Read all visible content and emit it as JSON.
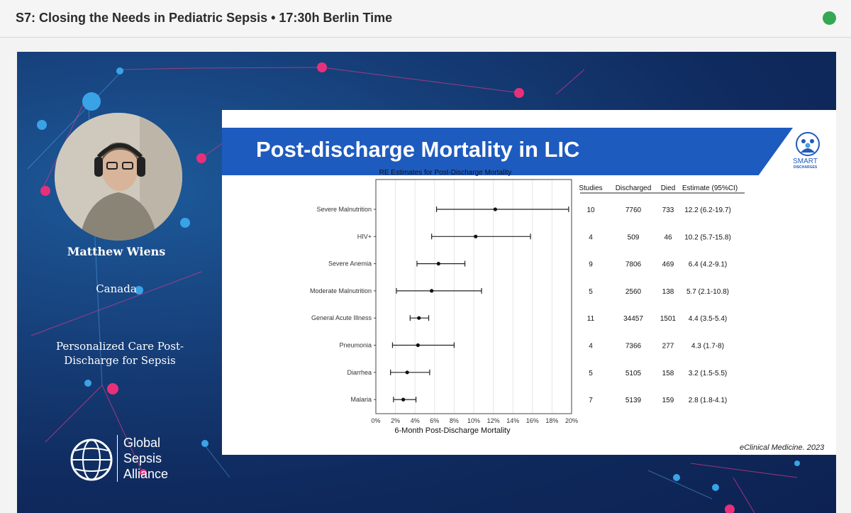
{
  "header": {
    "title": "S7: Closing the Needs in Pediatric Sepsis • 17:30h Berlin Time",
    "live_color": "#34a853"
  },
  "speaker": {
    "name": "Matthew Wiens",
    "country": "Canada",
    "talk_line1": "Personalized Care Post-",
    "talk_line2": "Discharge for Sepsis"
  },
  "organization": {
    "line1": "Global",
    "line2": "Sepsis",
    "line3": "Alliance"
  },
  "slide": {
    "title": "Post-discharge Mortality in LIC",
    "logo_text": "SMART",
    "logo_sub": "DISCHARGES",
    "citation": "eClinical Medicine. 2023",
    "table_headers": [
      "Studies",
      "Discharged",
      "Died",
      "Estimate (95%CI)"
    ],
    "rows": [
      {
        "condition": "Severe Malnutrition",
        "studies": "10",
        "discharged": "7760",
        "died": "733",
        "estimate_text": "12.2 (6.2-19.7)"
      },
      {
        "condition": "HIV+",
        "studies": "4",
        "discharged": "509",
        "died": "46",
        "estimate_text": "10.2 (5.7-15.8)"
      },
      {
        "condition": "Severe Anemia",
        "studies": "9",
        "discharged": "7806",
        "died": "469",
        "estimate_text": "6.4 (4.2-9.1)"
      },
      {
        "condition": "Moderate Malnutrition",
        "studies": "5",
        "discharged": "2560",
        "died": "138",
        "estimate_text": "5.7 (2.1-10.8)"
      },
      {
        "condition": "General Acute Illness",
        "studies": "11",
        "discharged": "34457",
        "died": "1501",
        "estimate_text": "4.4 (3.5-5.4)"
      },
      {
        "condition": "Pneumonia",
        "studies": "4",
        "discharged": "7366",
        "died": "277",
        "estimate_text": "4.3 (1.7-8)"
      },
      {
        "condition": "Diarrhea",
        "studies": "5",
        "discharged": "5105",
        "died": "158",
        "estimate_text": "3.2 (1.5-5.5)"
      },
      {
        "condition": "Malaria",
        "studies": "7",
        "discharged": "5139",
        "died": "159",
        "estimate_text": "2.8 (1.8-4.1)"
      }
    ]
  },
  "chart_data": {
    "type": "scatter",
    "title": "RE Estimates for Post-Discharge Mortality",
    "xlabel": "6-Month Post-Discharge Mortality",
    "ylabel": "",
    "xlim": [
      0,
      20
    ],
    "grid": true,
    "x_ticks": [
      "0%",
      "2%",
      "4%",
      "6%",
      "8%",
      "10%",
      "12%",
      "14%",
      "16%",
      "18%",
      "20%"
    ],
    "categories": [
      "Severe Malnutrition",
      "HIV+",
      "Severe Anemia",
      "Moderate Malnutrition",
      "General Acute Illness",
      "Pneumonia",
      "Diarrhea",
      "Malaria"
    ],
    "estimates": [
      12.2,
      10.2,
      6.4,
      5.7,
      4.4,
      4.3,
      3.2,
      2.8
    ],
    "ci_low": [
      6.2,
      5.7,
      4.2,
      2.1,
      3.5,
      1.7,
      1.5,
      1.8
    ],
    "ci_high": [
      19.7,
      15.8,
      9.1,
      10.8,
      5.4,
      8.0,
      5.5,
      4.1
    ]
  },
  "colors": {
    "video_bg": "#163e78",
    "banner": "#1e5bbf",
    "accent_pink": "#e8307a",
    "accent_blue": "#3aa3e8"
  }
}
